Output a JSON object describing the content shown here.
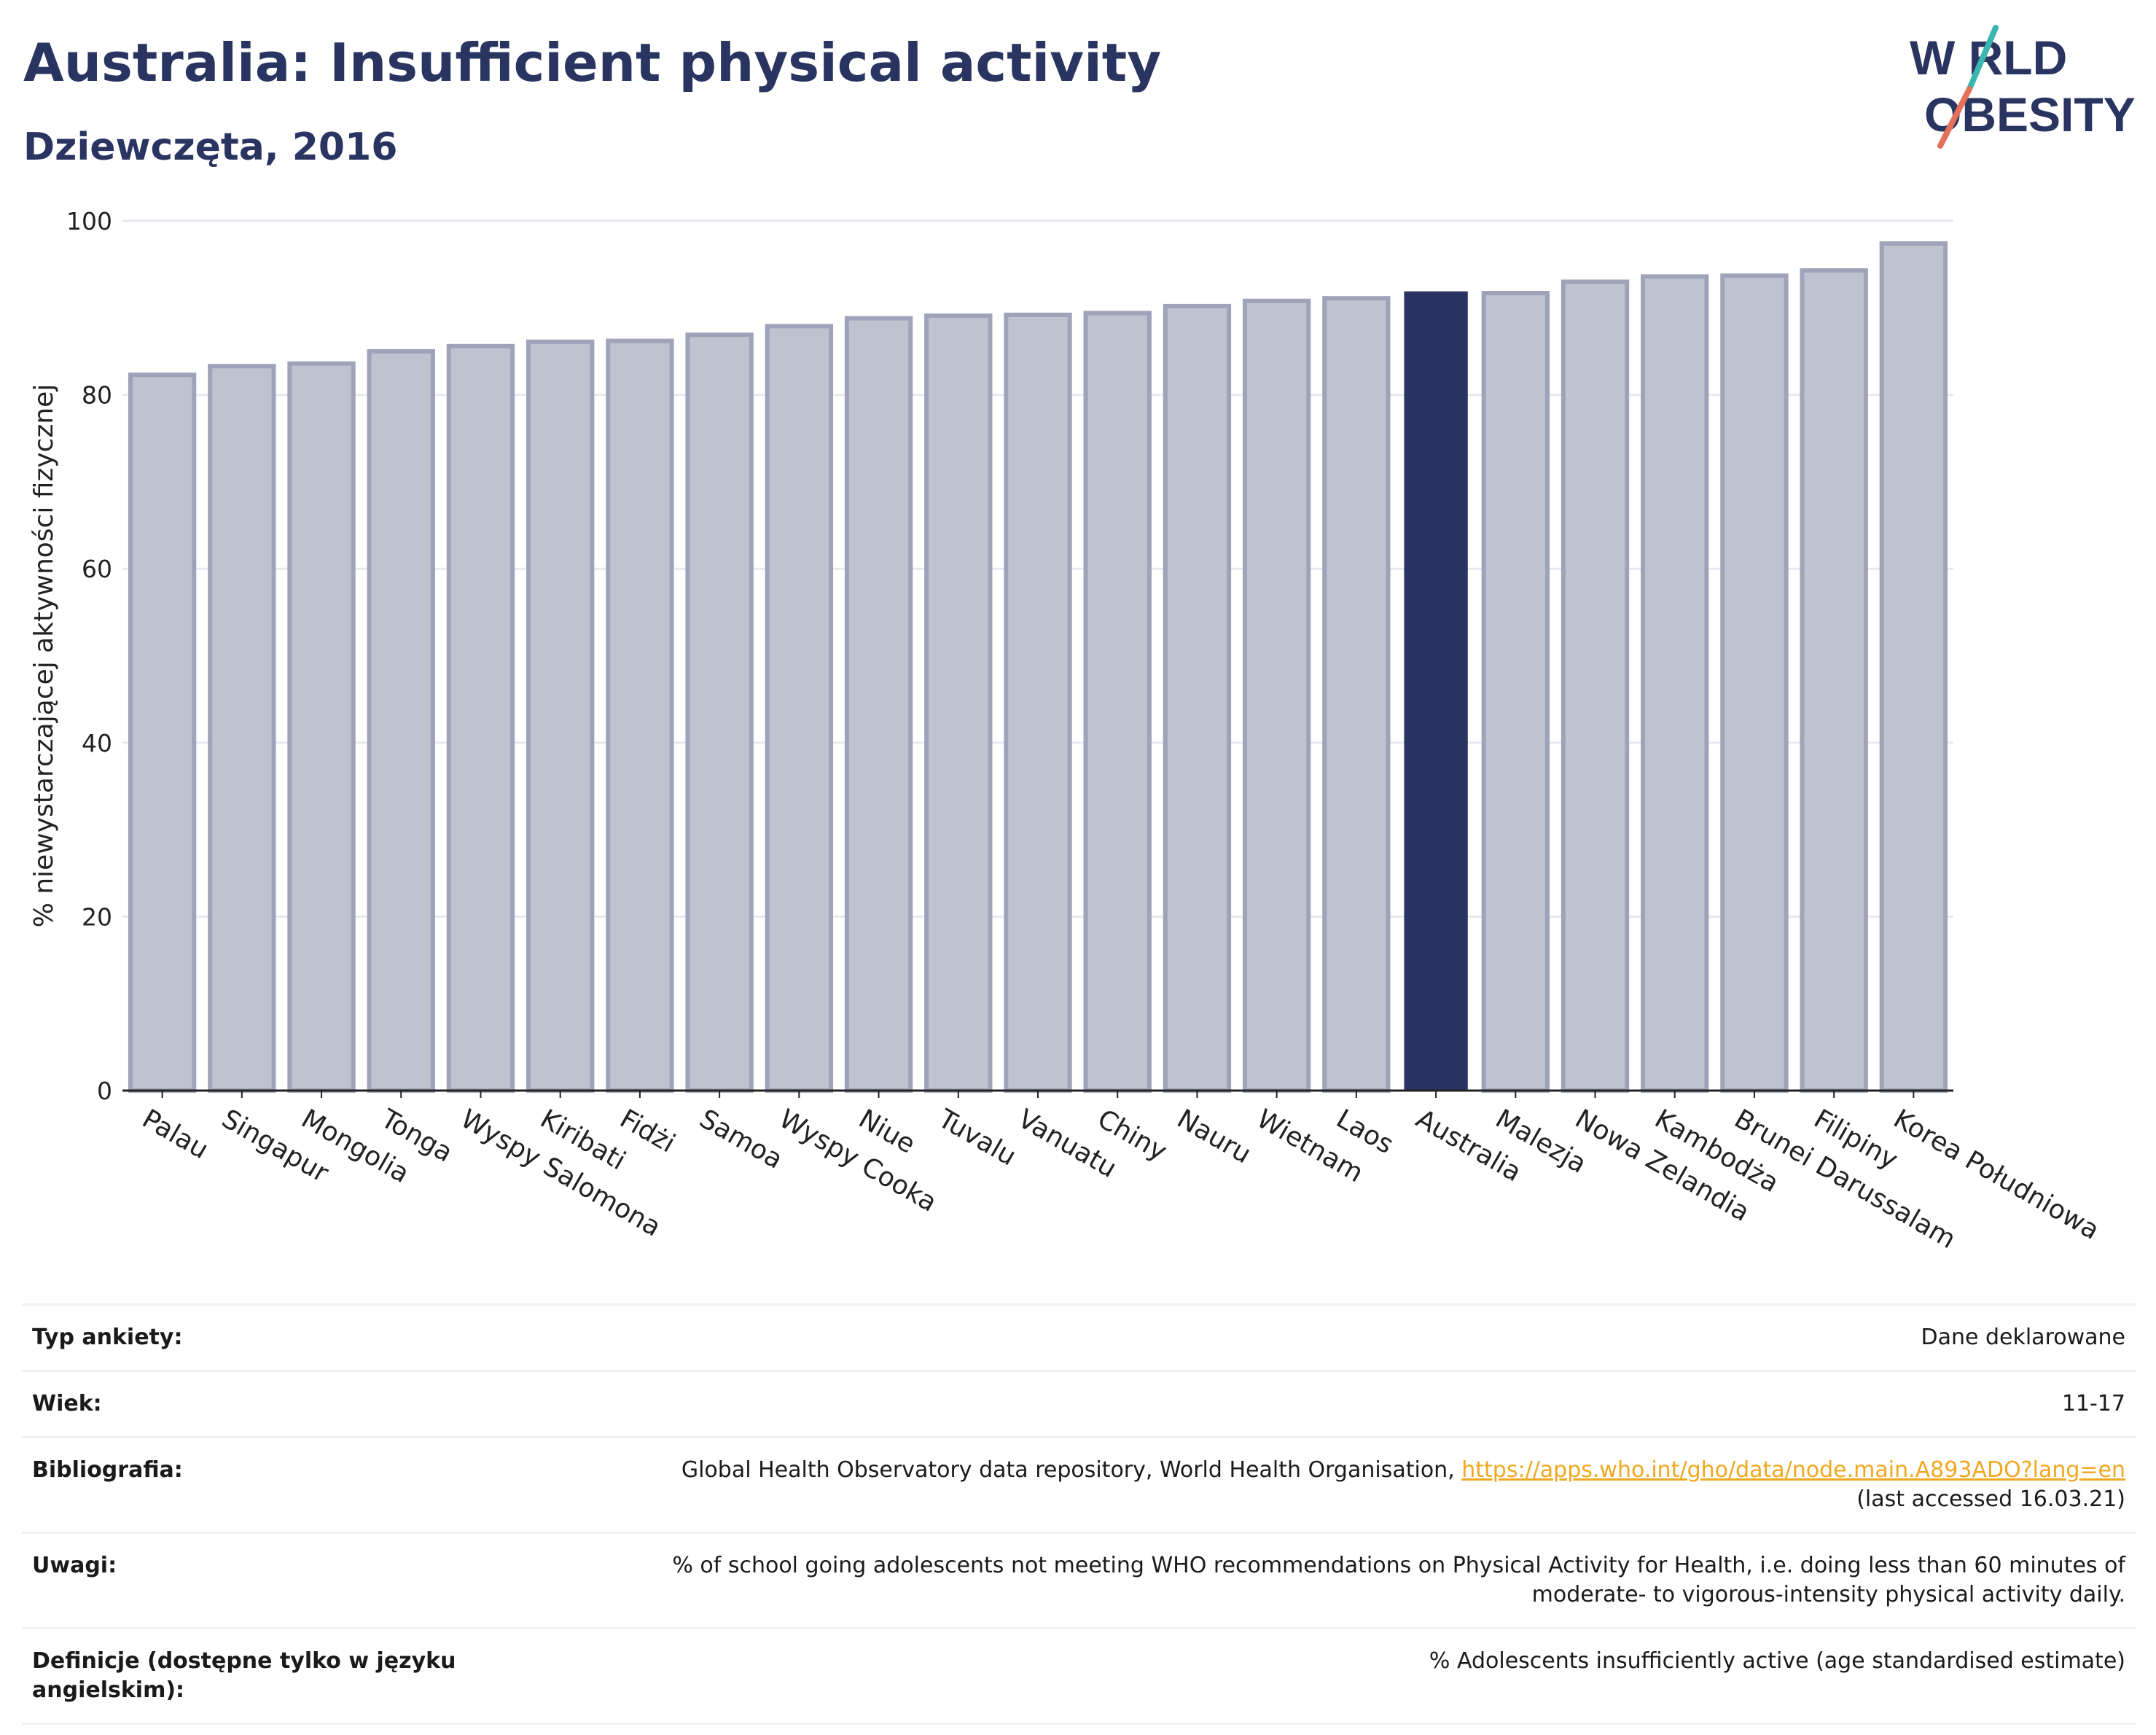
{
  "header": {
    "title": "Australia: Insufficient physical activity",
    "subtitle": "Dziewczęta, 2016"
  },
  "logo": {
    "line1": "W RLD",
    "line2": "OBESITY",
    "text": "WORLD OBESITY",
    "colors": {
      "text": "#2a3460",
      "teal": "#3ab5b0",
      "coral": "#e4705a"
    }
  },
  "colors": {
    "highlight": "#2a3460",
    "bar_fill": "#bfc2cf",
    "bar_edge": "#9ea3b9",
    "grid": "#e7e9ef",
    "axis": "#222222"
  },
  "chart_data": {
    "type": "bar",
    "ylabel": "% niewystarczającej aktywności fizycznej",
    "ylim": [
      0,
      100
    ],
    "yticks": [
      0,
      20,
      40,
      60,
      80,
      100
    ],
    "grid": true,
    "highlight": "Australia",
    "categories": [
      "Palau",
      "Singapur",
      "Mongolia",
      "Tonga",
      "Wyspy Salomona",
      "Kiribati",
      "Fidżi",
      "Samoa",
      "Wyspy Cooka",
      "Niue",
      "Tuvalu",
      "Vanuatu",
      "Chiny",
      "Nauru",
      "Wietnam",
      "Laos",
      "Australia",
      "Malezja",
      "Nowa Zelandia",
      "Kambodża",
      "Brunei Darussalam",
      "Filipiny",
      "Korea Południowa"
    ],
    "values": [
      82.3,
      83.3,
      83.6,
      85.0,
      85.6,
      86.1,
      86.2,
      86.9,
      87.9,
      88.8,
      89.1,
      89.2,
      89.4,
      90.2,
      90.8,
      91.1,
      91.9,
      91.7,
      93.0,
      93.6,
      93.7,
      94.3,
      97.4
    ]
  },
  "meta": {
    "rows": [
      {
        "key": "Typ ankiety:",
        "value": "Dane deklarowane"
      },
      {
        "key": "Wiek:",
        "value": "11-17"
      },
      {
        "key": "Bibliografia:",
        "value_prefix": "Global Health Observatory data repository, World Health Organisation, ",
        "link": "https://apps.who.int/gho/data/node.main.A893ADO?lang=en",
        "value_suffix": "(last accessed 16.03.21)"
      },
      {
        "key": "Uwagi:",
        "value": "% of school going adolescents not meeting WHO recommendations on Physical Activity for Health, i.e. doing less than 60 minutes of moderate- to vigorous-intensity physical activity daily."
      },
      {
        "key": "Definicje (dostępne tylko w języku angielskim):",
        "value": "% Adolescents insufficiently active (age standardised estimate)"
      }
    ]
  }
}
